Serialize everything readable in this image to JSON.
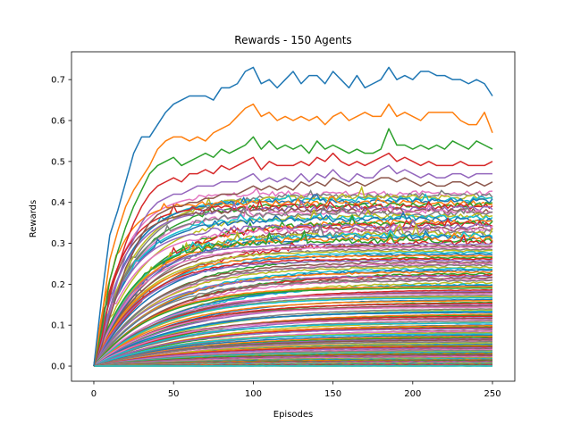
{
  "chart_data": {
    "type": "line",
    "title": "Rewards - 150 Agents",
    "xlabel": "Episodes",
    "ylabel": "Rewards",
    "xlim": [
      -14,
      264
    ],
    "ylim": [
      -0.037,
      0.768
    ],
    "xticks": [
      0,
      50,
      100,
      150,
      200,
      250
    ],
    "yticks": [
      0.0,
      0.1,
      0.2,
      0.3,
      0.4,
      0.5,
      0.6,
      0.7
    ],
    "grid": false,
    "legend": "none",
    "episodes": [
      0,
      250
    ],
    "agent_count": 150,
    "highlighted_series": [
      {
        "color": "#1f77b4",
        "points": [
          [
            0,
            0.0
          ],
          [
            5,
            0.17
          ],
          [
            10,
            0.32
          ],
          [
            15,
            0.38
          ],
          [
            20,
            0.45
          ],
          [
            25,
            0.52
          ],
          [
            30,
            0.56
          ],
          [
            35,
            0.56
          ],
          [
            40,
            0.59
          ],
          [
            45,
            0.62
          ],
          [
            50,
            0.64
          ],
          [
            55,
            0.65
          ],
          [
            60,
            0.66
          ],
          [
            65,
            0.66
          ],
          [
            70,
            0.66
          ],
          [
            75,
            0.65
          ],
          [
            80,
            0.68
          ],
          [
            85,
            0.68
          ],
          [
            90,
            0.69
          ],
          [
            95,
            0.72
          ],
          [
            100,
            0.73
          ],
          [
            105,
            0.69
          ],
          [
            110,
            0.7
          ],
          [
            115,
            0.68
          ],
          [
            120,
            0.7
          ],
          [
            125,
            0.72
          ],
          [
            130,
            0.69
          ],
          [
            135,
            0.71
          ],
          [
            140,
            0.71
          ],
          [
            145,
            0.69
          ],
          [
            150,
            0.72
          ],
          [
            155,
            0.7
          ],
          [
            160,
            0.68
          ],
          [
            165,
            0.71
          ],
          [
            170,
            0.68
          ],
          [
            175,
            0.69
          ],
          [
            180,
            0.7
          ],
          [
            185,
            0.73
          ],
          [
            190,
            0.7
          ],
          [
            195,
            0.71
          ],
          [
            200,
            0.7
          ],
          [
            205,
            0.72
          ],
          [
            210,
            0.72
          ],
          [
            215,
            0.71
          ],
          [
            220,
            0.71
          ],
          [
            225,
            0.7
          ],
          [
            230,
            0.7
          ],
          [
            235,
            0.69
          ],
          [
            240,
            0.7
          ],
          [
            245,
            0.69
          ],
          [
            250,
            0.66
          ]
        ]
      },
      {
        "color": "#ff7f0e",
        "points": [
          [
            0,
            0.0
          ],
          [
            5,
            0.12
          ],
          [
            10,
            0.26
          ],
          [
            15,
            0.33
          ],
          [
            20,
            0.39
          ],
          [
            25,
            0.43
          ],
          [
            30,
            0.46
          ],
          [
            35,
            0.49
          ],
          [
            40,
            0.53
          ],
          [
            45,
            0.55
          ],
          [
            50,
            0.56
          ],
          [
            55,
            0.56
          ],
          [
            60,
            0.55
          ],
          [
            65,
            0.56
          ],
          [
            70,
            0.55
          ],
          [
            75,
            0.57
          ],
          [
            80,
            0.58
          ],
          [
            85,
            0.59
          ],
          [
            90,
            0.61
          ],
          [
            95,
            0.63
          ],
          [
            100,
            0.64
          ],
          [
            105,
            0.61
          ],
          [
            110,
            0.62
          ],
          [
            115,
            0.6
          ],
          [
            120,
            0.61
          ],
          [
            125,
            0.6
          ],
          [
            130,
            0.61
          ],
          [
            135,
            0.6
          ],
          [
            140,
            0.61
          ],
          [
            145,
            0.59
          ],
          [
            150,
            0.61
          ],
          [
            155,
            0.62
          ],
          [
            160,
            0.6
          ],
          [
            165,
            0.61
          ],
          [
            170,
            0.62
          ],
          [
            175,
            0.61
          ],
          [
            180,
            0.61
          ],
          [
            185,
            0.64
          ],
          [
            190,
            0.61
          ],
          [
            195,
            0.62
          ],
          [
            200,
            0.61
          ],
          [
            205,
            0.6
          ],
          [
            210,
            0.62
          ],
          [
            215,
            0.62
          ],
          [
            220,
            0.62
          ],
          [
            225,
            0.62
          ],
          [
            230,
            0.6
          ],
          [
            235,
            0.59
          ],
          [
            240,
            0.59
          ],
          [
            245,
            0.62
          ],
          [
            250,
            0.57
          ]
        ]
      },
      {
        "color": "#2ca02c",
        "points": [
          [
            0,
            0.0
          ],
          [
            5,
            0.09
          ],
          [
            10,
            0.21
          ],
          [
            15,
            0.28
          ],
          [
            20,
            0.34
          ],
          [
            25,
            0.39
          ],
          [
            30,
            0.43
          ],
          [
            35,
            0.47
          ],
          [
            40,
            0.49
          ],
          [
            45,
            0.5
          ],
          [
            50,
            0.51
          ],
          [
            55,
            0.49
          ],
          [
            60,
            0.5
          ],
          [
            65,
            0.51
          ],
          [
            70,
            0.52
          ],
          [
            75,
            0.51
          ],
          [
            80,
            0.53
          ],
          [
            85,
            0.52
          ],
          [
            90,
            0.53
          ],
          [
            95,
            0.54
          ],
          [
            100,
            0.56
          ],
          [
            105,
            0.53
          ],
          [
            110,
            0.55
          ],
          [
            115,
            0.53
          ],
          [
            120,
            0.54
          ],
          [
            125,
            0.53
          ],
          [
            130,
            0.54
          ],
          [
            135,
            0.52
          ],
          [
            140,
            0.55
          ],
          [
            145,
            0.53
          ],
          [
            150,
            0.54
          ],
          [
            155,
            0.53
          ],
          [
            160,
            0.52
          ],
          [
            165,
            0.53
          ],
          [
            170,
            0.52
          ],
          [
            175,
            0.52
          ],
          [
            180,
            0.53
          ],
          [
            185,
            0.58
          ],
          [
            190,
            0.54
          ],
          [
            195,
            0.54
          ],
          [
            200,
            0.53
          ],
          [
            205,
            0.54
          ],
          [
            210,
            0.53
          ],
          [
            215,
            0.54
          ],
          [
            220,
            0.53
          ],
          [
            225,
            0.55
          ],
          [
            230,
            0.54
          ],
          [
            235,
            0.53
          ],
          [
            240,
            0.55
          ],
          [
            245,
            0.54
          ],
          [
            250,
            0.53
          ]
        ]
      },
      {
        "color": "#d62728",
        "points": [
          [
            0,
            0.0
          ],
          [
            5,
            0.07
          ],
          [
            10,
            0.17
          ],
          [
            15,
            0.24
          ],
          [
            20,
            0.3
          ],
          [
            25,
            0.35
          ],
          [
            30,
            0.39
          ],
          [
            35,
            0.42
          ],
          [
            40,
            0.44
          ],
          [
            45,
            0.45
          ],
          [
            50,
            0.46
          ],
          [
            55,
            0.45
          ],
          [
            60,
            0.47
          ],
          [
            65,
            0.47
          ],
          [
            70,
            0.48
          ],
          [
            75,
            0.47
          ],
          [
            80,
            0.49
          ],
          [
            85,
            0.48
          ],
          [
            90,
            0.49
          ],
          [
            95,
            0.5
          ],
          [
            100,
            0.51
          ],
          [
            105,
            0.48
          ],
          [
            110,
            0.5
          ],
          [
            115,
            0.49
          ],
          [
            120,
            0.49
          ],
          [
            125,
            0.49
          ],
          [
            130,
            0.5
          ],
          [
            135,
            0.49
          ],
          [
            140,
            0.51
          ],
          [
            145,
            0.5
          ],
          [
            150,
            0.52
          ],
          [
            155,
            0.5
          ],
          [
            160,
            0.49
          ],
          [
            165,
            0.5
          ],
          [
            170,
            0.49
          ],
          [
            175,
            0.5
          ],
          [
            180,
            0.51
          ],
          [
            185,
            0.52
          ],
          [
            190,
            0.5
          ],
          [
            195,
            0.51
          ],
          [
            200,
            0.5
          ],
          [
            205,
            0.49
          ],
          [
            210,
            0.5
          ],
          [
            215,
            0.49
          ],
          [
            220,
            0.49
          ],
          [
            225,
            0.49
          ],
          [
            230,
            0.5
          ],
          [
            235,
            0.49
          ],
          [
            240,
            0.49
          ],
          [
            245,
            0.49
          ],
          [
            250,
            0.5
          ]
        ]
      },
      {
        "color": "#9467bd",
        "points": [
          [
            0,
            0.0
          ],
          [
            5,
            0.06
          ],
          [
            10,
            0.14
          ],
          [
            15,
            0.21
          ],
          [
            20,
            0.27
          ],
          [
            25,
            0.31
          ],
          [
            30,
            0.35
          ],
          [
            35,
            0.38
          ],
          [
            40,
            0.4
          ],
          [
            45,
            0.41
          ],
          [
            50,
            0.42
          ],
          [
            55,
            0.42
          ],
          [
            60,
            0.43
          ],
          [
            65,
            0.44
          ],
          [
            70,
            0.44
          ],
          [
            75,
            0.44
          ],
          [
            80,
            0.45
          ],
          [
            85,
            0.45
          ],
          [
            90,
            0.45
          ],
          [
            95,
            0.46
          ],
          [
            100,
            0.47
          ],
          [
            105,
            0.45
          ],
          [
            110,
            0.46
          ],
          [
            115,
            0.45
          ],
          [
            120,
            0.46
          ],
          [
            125,
            0.45
          ],
          [
            130,
            0.47
          ],
          [
            135,
            0.45
          ],
          [
            140,
            0.47
          ],
          [
            145,
            0.46
          ],
          [
            150,
            0.48
          ],
          [
            155,
            0.46
          ],
          [
            160,
            0.45
          ],
          [
            165,
            0.47
          ],
          [
            170,
            0.46
          ],
          [
            175,
            0.46
          ],
          [
            180,
            0.48
          ],
          [
            185,
            0.49
          ],
          [
            190,
            0.47
          ],
          [
            195,
            0.48
          ],
          [
            200,
            0.47
          ],
          [
            205,
            0.46
          ],
          [
            210,
            0.47
          ],
          [
            215,
            0.46
          ],
          [
            220,
            0.46
          ],
          [
            225,
            0.47
          ],
          [
            230,
            0.47
          ],
          [
            235,
            0.46
          ],
          [
            240,
            0.47
          ],
          [
            245,
            0.47
          ],
          [
            250,
            0.47
          ]
        ]
      },
      {
        "color": "#8c564b",
        "points": [
          [
            0,
            0.0
          ],
          [
            5,
            0.05
          ],
          [
            10,
            0.12
          ],
          [
            15,
            0.18
          ],
          [
            20,
            0.24
          ],
          [
            25,
            0.28
          ],
          [
            30,
            0.32
          ],
          [
            35,
            0.35
          ],
          [
            40,
            0.37
          ],
          [
            45,
            0.38
          ],
          [
            50,
            0.39
          ],
          [
            55,
            0.39
          ],
          [
            60,
            0.4
          ],
          [
            65,
            0.4
          ],
          [
            70,
            0.41
          ],
          [
            75,
            0.41
          ],
          [
            80,
            0.42
          ],
          [
            85,
            0.42
          ],
          [
            90,
            0.42
          ],
          [
            95,
            0.43
          ],
          [
            100,
            0.44
          ],
          [
            105,
            0.43
          ],
          [
            110,
            0.44
          ],
          [
            115,
            0.43
          ],
          [
            120,
            0.44
          ],
          [
            125,
            0.43
          ],
          [
            130,
            0.45
          ],
          [
            135,
            0.44
          ],
          [
            140,
            0.45
          ],
          [
            145,
            0.44
          ],
          [
            150,
            0.46
          ],
          [
            155,
            0.45
          ],
          [
            160,
            0.44
          ],
          [
            165,
            0.45
          ],
          [
            170,
            0.44
          ],
          [
            175,
            0.45
          ],
          [
            180,
            0.46
          ],
          [
            185,
            0.46
          ],
          [
            190,
            0.45
          ],
          [
            195,
            0.46
          ],
          [
            200,
            0.45
          ],
          [
            205,
            0.44
          ],
          [
            210,
            0.45
          ],
          [
            215,
            0.44
          ],
          [
            220,
            0.44
          ],
          [
            225,
            0.45
          ],
          [
            230,
            0.45
          ],
          [
            235,
            0.44
          ],
          [
            240,
            0.45
          ],
          [
            245,
            0.44
          ],
          [
            250,
            0.45
          ]
        ]
      }
    ]
  }
}
